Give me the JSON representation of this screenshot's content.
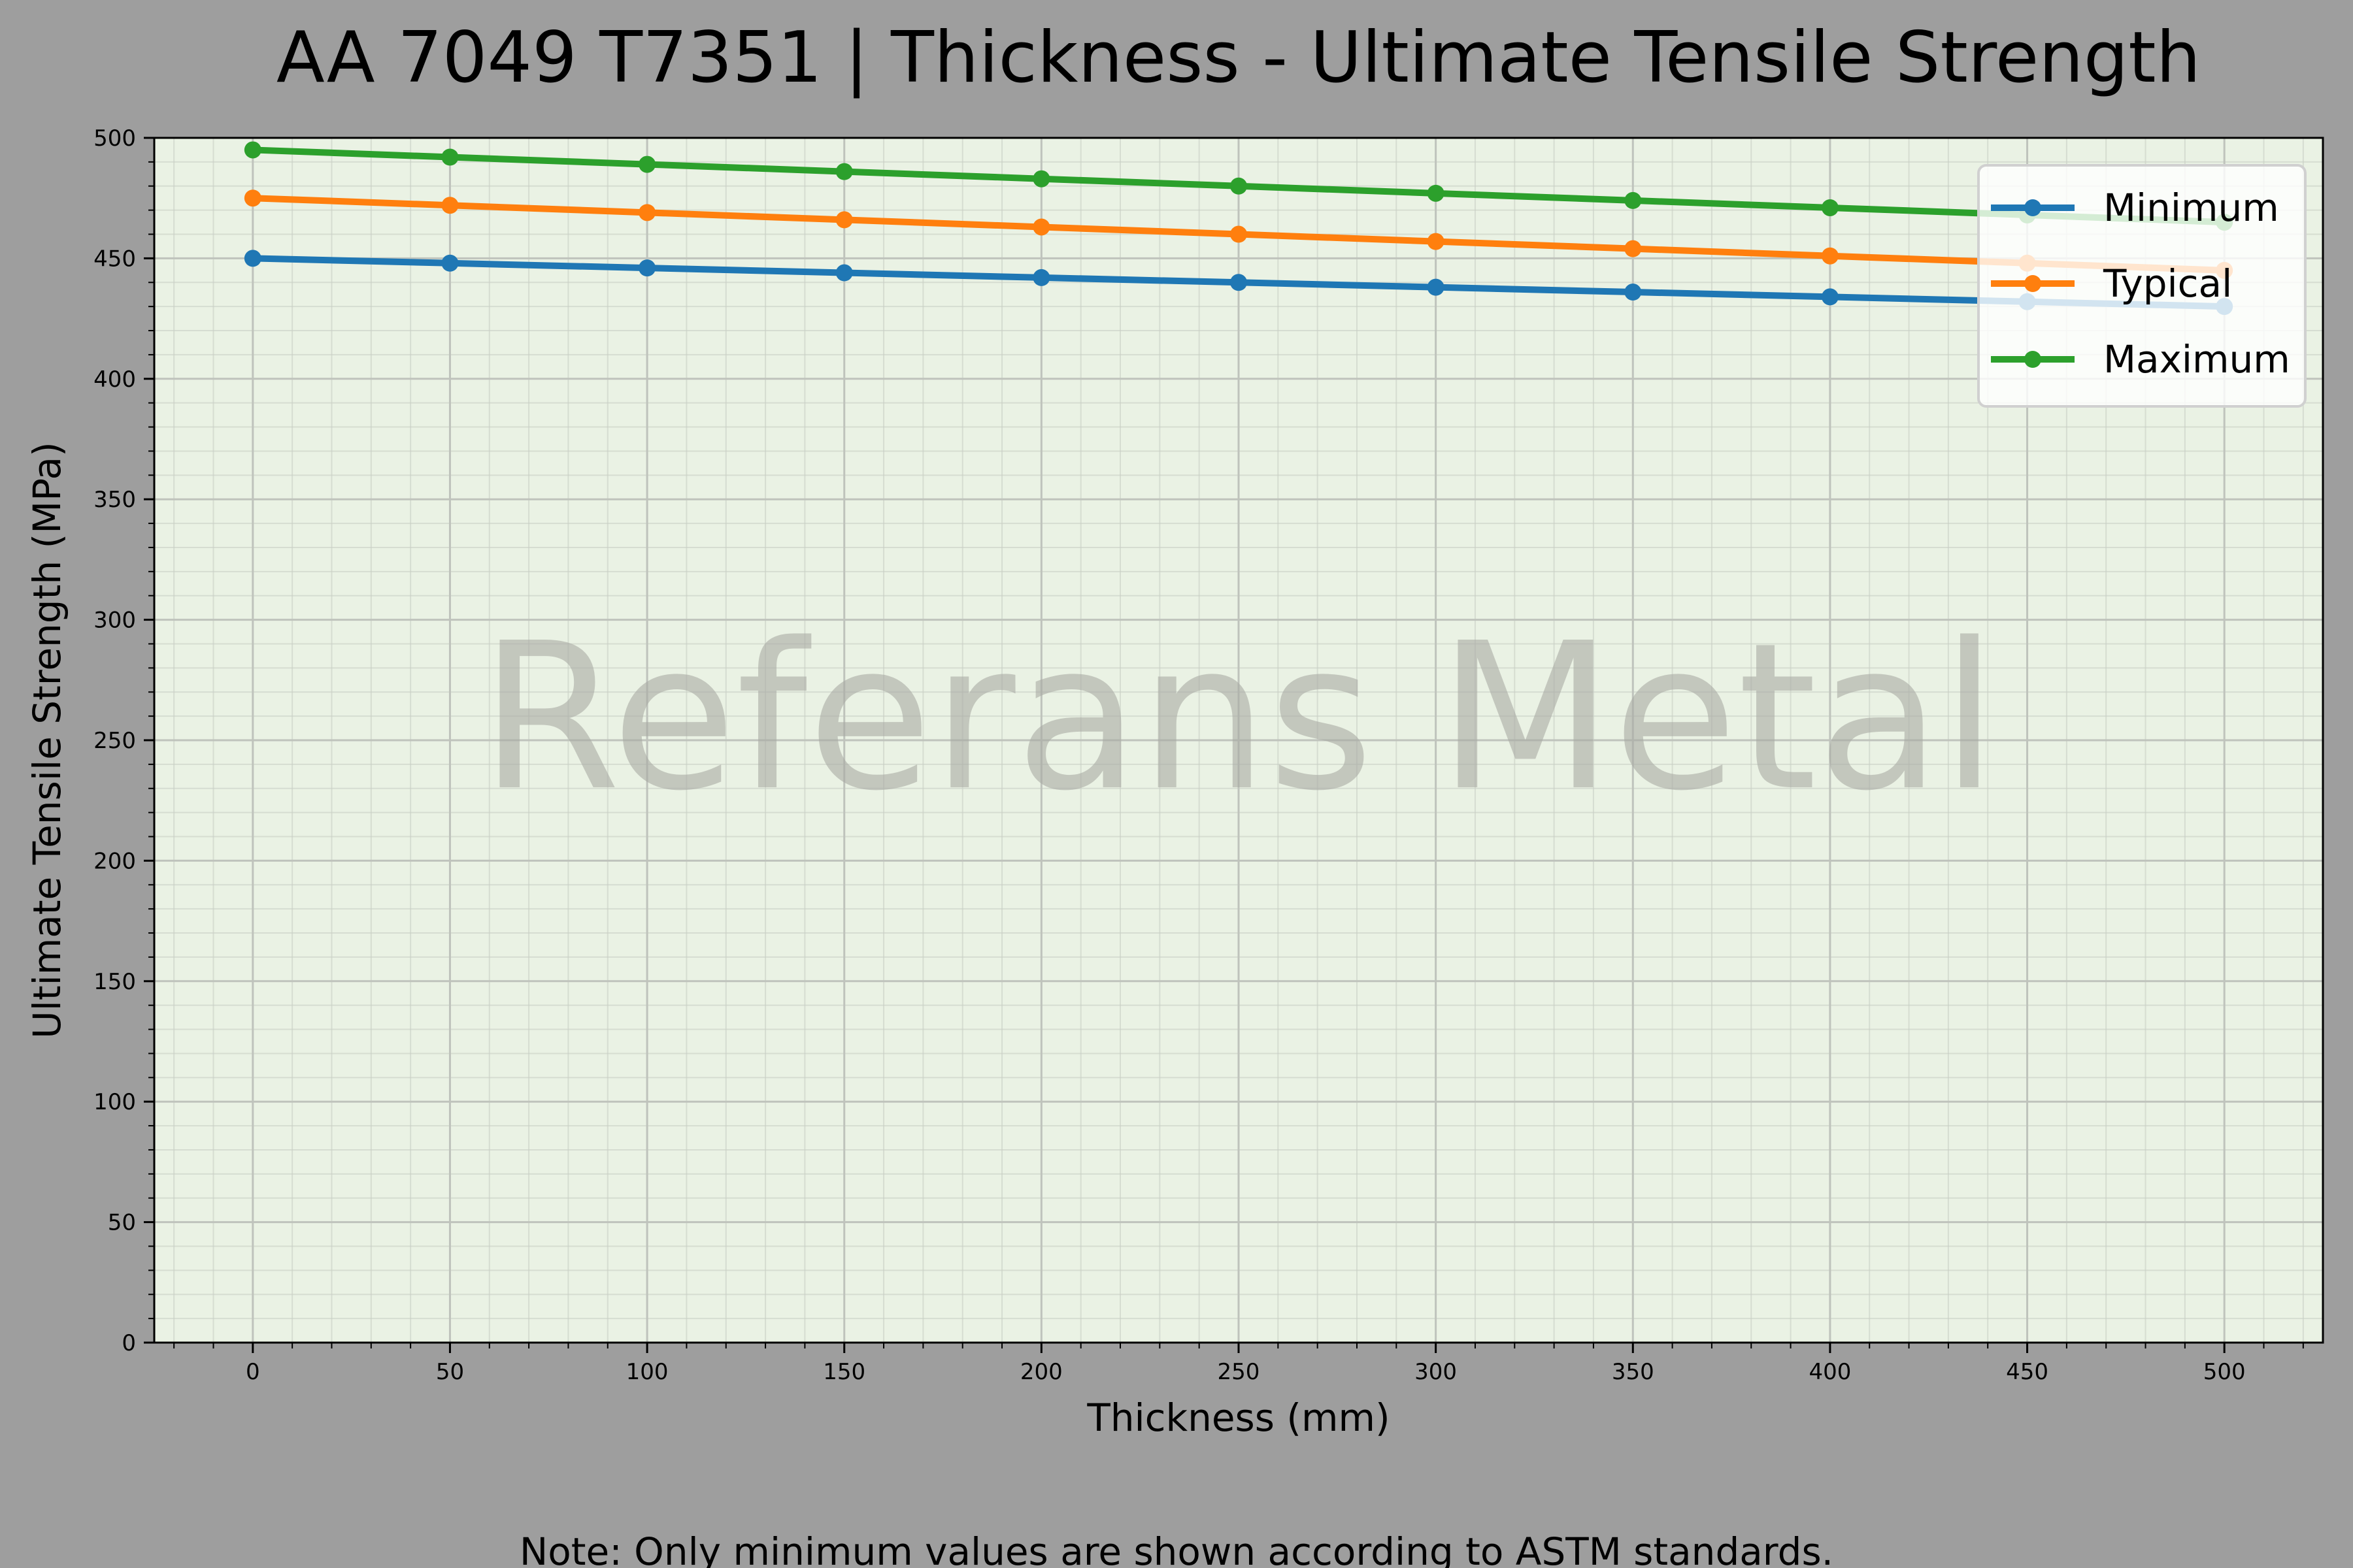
{
  "chart_data": {
    "type": "line",
    "title": "AA 7049 T7351 | Thickness - Ultimate Tensile Strength",
    "xlabel": "Thickness (mm)",
    "ylabel": "Ultimate Tensile Strength (MPa)",
    "x": [
      0,
      50,
      100,
      150,
      200,
      250,
      300,
      350,
      400,
      450,
      500
    ],
    "xlim": [
      -25,
      525
    ],
    "ylim": [
      0,
      500
    ],
    "xticks": [
      "0",
      "50",
      "100",
      "150",
      "200",
      "250",
      "300",
      "350",
      "400",
      "450",
      "500"
    ],
    "yticks": [
      "0",
      "50",
      "100",
      "150",
      "200",
      "250",
      "300",
      "350",
      "400",
      "450",
      "500"
    ],
    "grid": true,
    "legend_position": "top-right",
    "series": [
      {
        "name": "Minimum",
        "color": "#1f77b4",
        "values": [
          450,
          448,
          446,
          444,
          442,
          440,
          438,
          436,
          434,
          432,
          430
        ]
      },
      {
        "name": "Typical",
        "color": "#ff7f0e",
        "values": [
          475,
          472,
          469,
          466,
          463,
          460,
          457,
          454,
          451,
          448,
          445
        ]
      },
      {
        "name": "Maximum",
        "color": "#2ca02c",
        "values": [
          495,
          492,
          489,
          486,
          483,
          480,
          477,
          474,
          471,
          468,
          465
        ]
      }
    ],
    "watermark": "Referans Metal",
    "note": "Note: Only minimum values are shown according to ASTM standards.",
    "background": "#eaf2e4",
    "figure_background": "#9e9e9e"
  }
}
